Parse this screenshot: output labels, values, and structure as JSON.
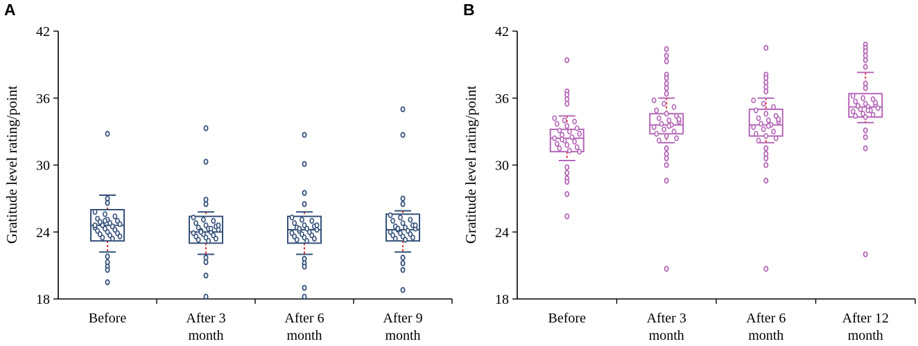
{
  "chart_data": [
    {
      "type": "box",
      "panel": "A",
      "ylabel": "Gratitude level rating/point",
      "ylim": [
        18,
        42
      ],
      "yticks": [
        18,
        24,
        30,
        36,
        42
      ],
      "categories": [
        [
          "Before"
        ],
        [
          "After  3",
          "month"
        ],
        [
          "After  6",
          "month"
        ],
        [
          "After  9",
          "month"
        ]
      ],
      "color": "#34507a",
      "whisker_color": "#e03030",
      "boxes": [
        {
          "q1": 23.2,
          "median": 24.6,
          "q3": 26.0,
          "whisker_low": 22.2,
          "whisker_high": 27.3,
          "outliers": [
            32.8,
            27.0,
            26.6,
            21.8,
            21.3,
            20.9,
            20.6,
            19.5
          ],
          "points": [
            25.8,
            25.6,
            25.4,
            25.2,
            25.1,
            25.0,
            24.9,
            24.8,
            24.7,
            24.6,
            24.5,
            24.4,
            24.3,
            24.2,
            24.1,
            24.0,
            23.9,
            23.8,
            23.7,
            23.6,
            23.5,
            23.4,
            24.6,
            25.0,
            24.2
          ]
        },
        {
          "q1": 23.0,
          "median": 24.0,
          "q3": 25.4,
          "whisker_low": 22.0,
          "whisker_high": 25.8,
          "outliers": [
            33.3,
            30.3,
            26.9,
            26.5,
            21.7,
            21.3,
            20.1,
            18.2
          ],
          "points": [
            25.3,
            25.1,
            25.0,
            24.8,
            24.6,
            24.5,
            24.4,
            24.3,
            24.2,
            24.1,
            24.0,
            23.9,
            23.8,
            23.7,
            23.6,
            23.5,
            23.4,
            23.3,
            23.2,
            24.6,
            24.0,
            24.3
          ]
        },
        {
          "q1": 23.0,
          "median": 24.2,
          "q3": 25.4,
          "whisker_low": 22.0,
          "whisker_high": 25.8,
          "outliers": [
            32.7,
            30.1,
            27.5,
            26.5,
            21.6,
            21.2,
            20.9,
            19.0,
            18.2
          ],
          "points": [
            25.3,
            25.1,
            25.0,
            24.8,
            24.6,
            24.5,
            24.4,
            24.3,
            24.2,
            24.1,
            24.0,
            23.9,
            23.8,
            23.7,
            23.6,
            23.5,
            23.4,
            23.3,
            23.2,
            24.6,
            24.3
          ]
        },
        {
          "q1": 23.2,
          "median": 24.2,
          "q3": 25.6,
          "whisker_low": 22.2,
          "whisker_high": 25.9,
          "outliers": [
            35.0,
            32.7,
            27.0,
            26.5,
            21.7,
            21.2,
            20.6,
            18.8
          ],
          "points": [
            25.5,
            25.3,
            25.1,
            25.0,
            24.8,
            24.6,
            24.5,
            24.4,
            24.3,
            24.2,
            24.1,
            24.0,
            23.9,
            23.8,
            23.7,
            23.6,
            23.5,
            23.4,
            23.3,
            24.6,
            24.3
          ]
        }
      ]
    },
    {
      "type": "box",
      "panel": "B",
      "ylabel": "Gratitude level rating/point",
      "ylim": [
        18,
        42
      ],
      "yticks": [
        18,
        24,
        30,
        36,
        42
      ],
      "categories": [
        [
          "Before"
        ],
        [
          "After  3",
          "month"
        ],
        [
          "After  6",
          "month"
        ],
        [
          "After  12",
          "month"
        ]
      ],
      "color": "#b566b8",
      "whisker_color": "#e03030",
      "boxes": [
        {
          "q1": 31.2,
          "median": 32.4,
          "q3": 33.2,
          "whisker_low": 30.4,
          "whisker_high": 34.4,
          "outliers": [
            39.4,
            36.6,
            36.3,
            35.9,
            35.5,
            29.8,
            29.3,
            28.8,
            28.5,
            27.4,
            25.4
          ],
          "points": [
            34.2,
            34.0,
            33.9,
            33.7,
            33.5,
            33.3,
            33.1,
            33.0,
            32.8,
            32.7,
            32.5,
            32.4,
            32.2,
            32.1,
            31.9,
            31.8,
            31.6,
            31.5,
            31.3,
            31.2,
            32.3
          ]
        },
        {
          "q1": 32.8,
          "median": 33.6,
          "q3": 34.6,
          "whisker_low": 32.0,
          "whisker_high": 36.0,
          "outliers": [
            40.4,
            39.8,
            39.3,
            38.1,
            37.8,
            37.3,
            36.9,
            36.4,
            31.5,
            31.0,
            30.6,
            30.0,
            28.6,
            20.7
          ],
          "points": [
            35.8,
            35.5,
            35.2,
            34.9,
            34.6,
            34.4,
            34.2,
            34.0,
            33.9,
            33.7,
            33.6,
            33.4,
            33.2,
            33.0,
            32.8,
            32.6,
            32.4,
            32.2,
            33.5,
            34.1
          ]
        },
        {
          "q1": 32.6,
          "median": 33.6,
          "q3": 35.0,
          "whisker_low": 32.0,
          "whisker_high": 36.0,
          "outliers": [
            40.5,
            38.1,
            37.8,
            37.4,
            37.0,
            36.6,
            31.5,
            31.0,
            30.6,
            30.0,
            28.6,
            20.7
          ],
          "points": [
            35.8,
            35.5,
            35.2,
            34.9,
            34.6,
            34.4,
            34.2,
            34.0,
            33.9,
            33.7,
            33.6,
            33.4,
            33.2,
            33.0,
            32.8,
            32.6,
            32.4,
            32.2,
            33.5,
            34.1
          ]
        },
        {
          "q1": 34.3,
          "median": 35.2,
          "q3": 36.4,
          "whisker_low": 33.8,
          "whisker_high": 38.3,
          "outliers": [
            40.8,
            40.5,
            40.2,
            39.8,
            39.4,
            38.8,
            37.3,
            36.9,
            33.1,
            32.5,
            31.5,
            22.0
          ],
          "points": [
            36.2,
            36.0,
            35.9,
            35.7,
            35.5,
            35.4,
            35.3,
            35.2,
            35.1,
            35.0,
            34.9,
            34.8,
            34.6,
            34.5,
            34.4,
            34.3,
            35.6,
            35.3,
            34.9
          ]
        }
      ]
    }
  ]
}
